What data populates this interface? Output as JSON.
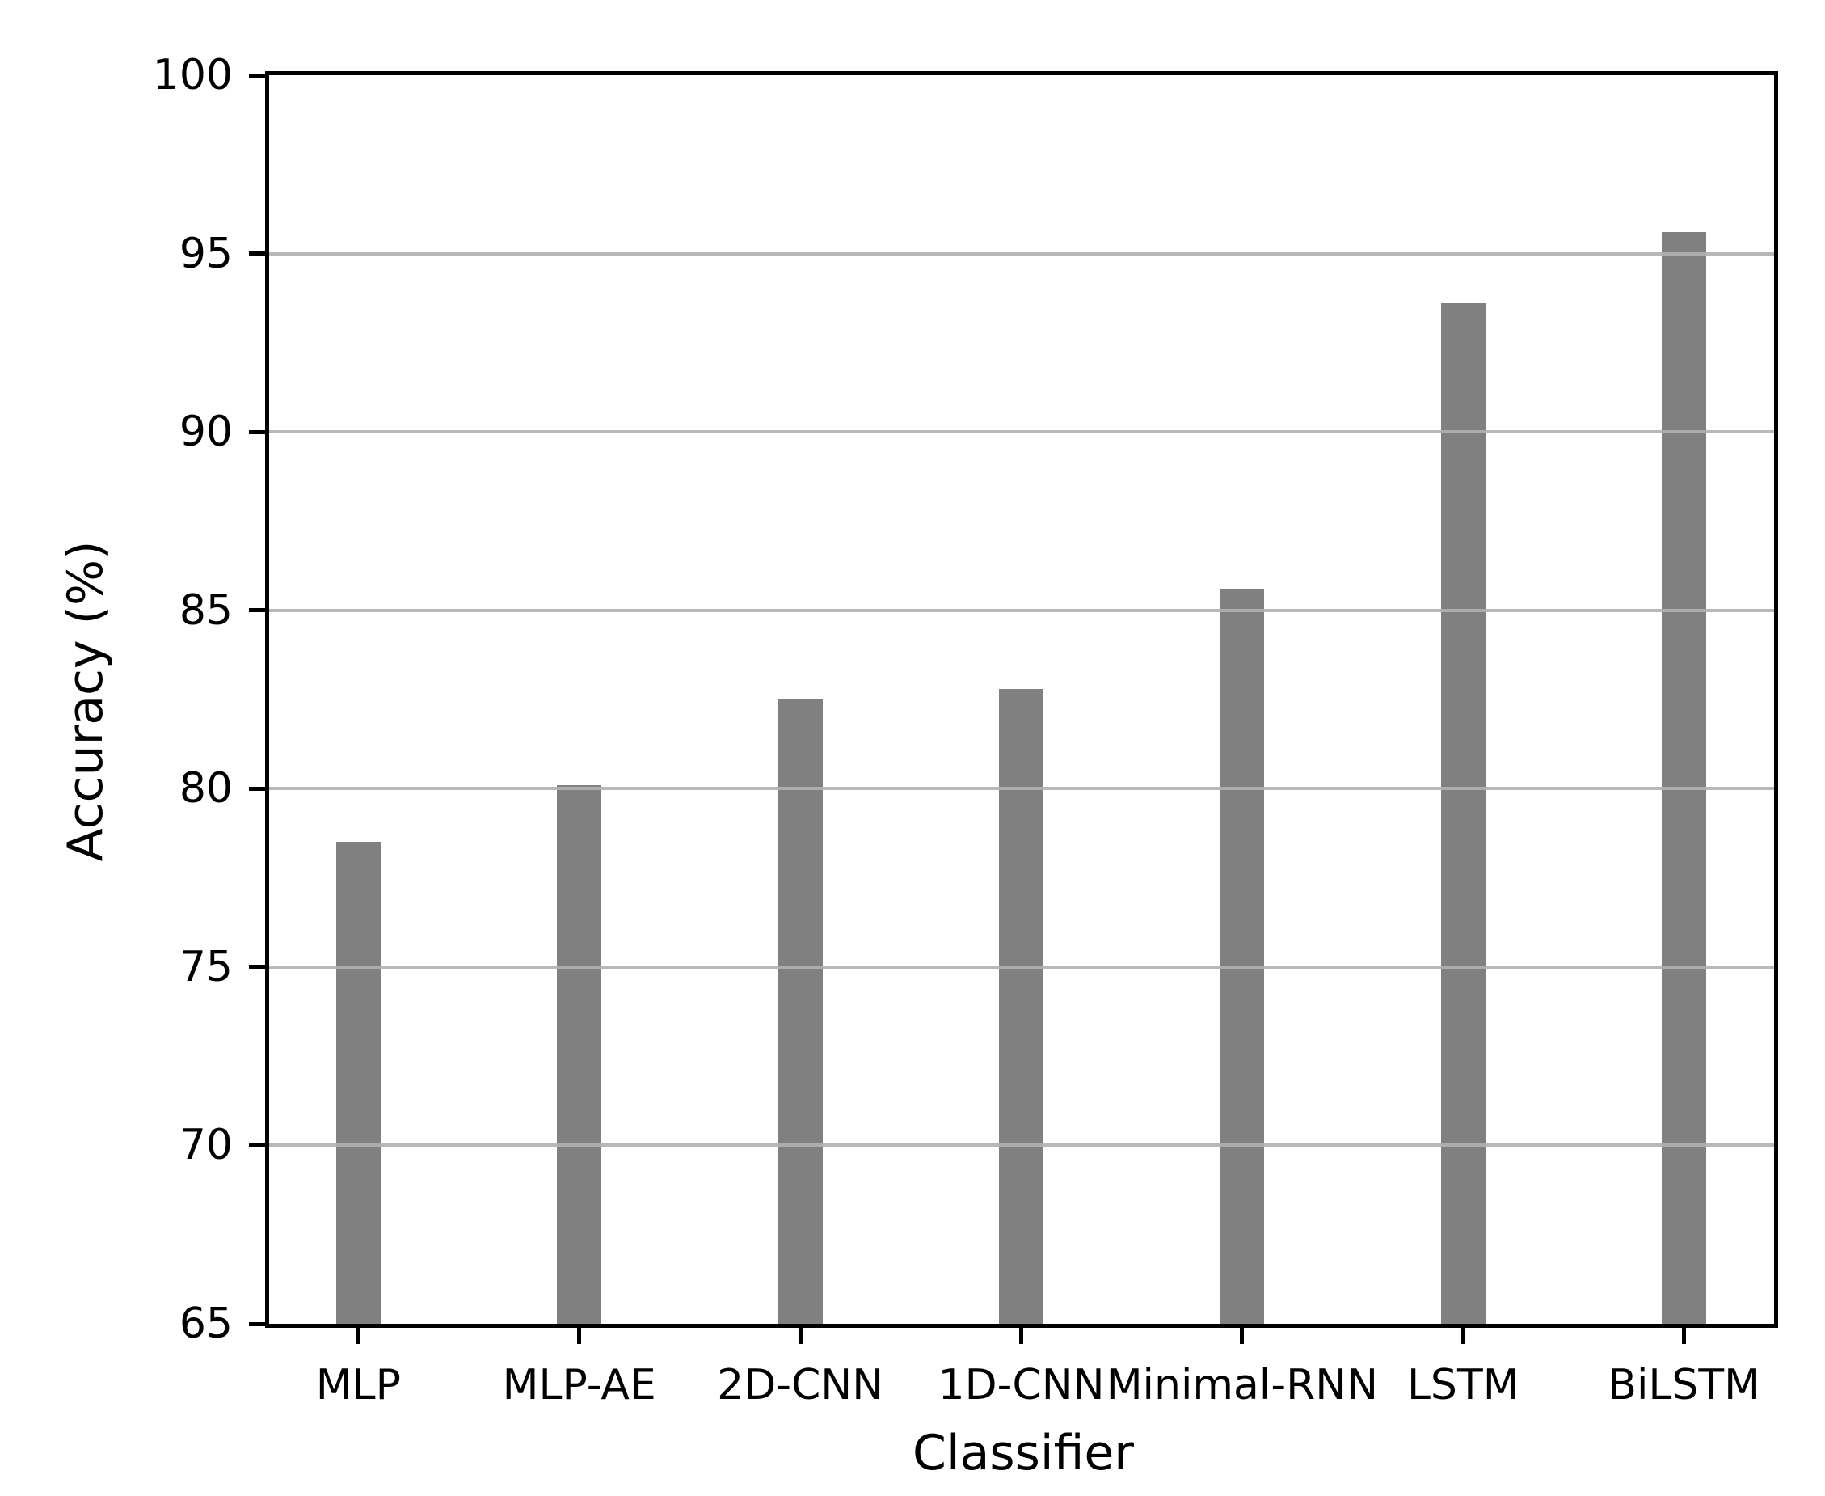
{
  "figure": {
    "background_color": "#ffffff",
    "title": ""
  },
  "chart_data": {
    "type": "bar",
    "categories": [
      "MLP",
      "MLP-AE",
      "2D-CNN",
      "1D-CNN",
      "Minimal-RNN",
      "LSTM",
      "BiLSTM"
    ],
    "values": [
      78.5,
      80.1,
      82.5,
      82.8,
      85.6,
      93.6,
      95.6
    ],
    "title": "",
    "xlabel": "Classifier",
    "ylabel": "Accuracy (%)",
    "ylim": [
      65,
      100
    ],
    "yticks": [
      65,
      70,
      75,
      80,
      85,
      90,
      95,
      100
    ],
    "grid": "horizontal",
    "grid_on": true,
    "legend": "none",
    "bar_color": "#808080",
    "grid_color": "#b0b0b0",
    "axis_color": "#000000",
    "tick_label_color": "#000000"
  }
}
